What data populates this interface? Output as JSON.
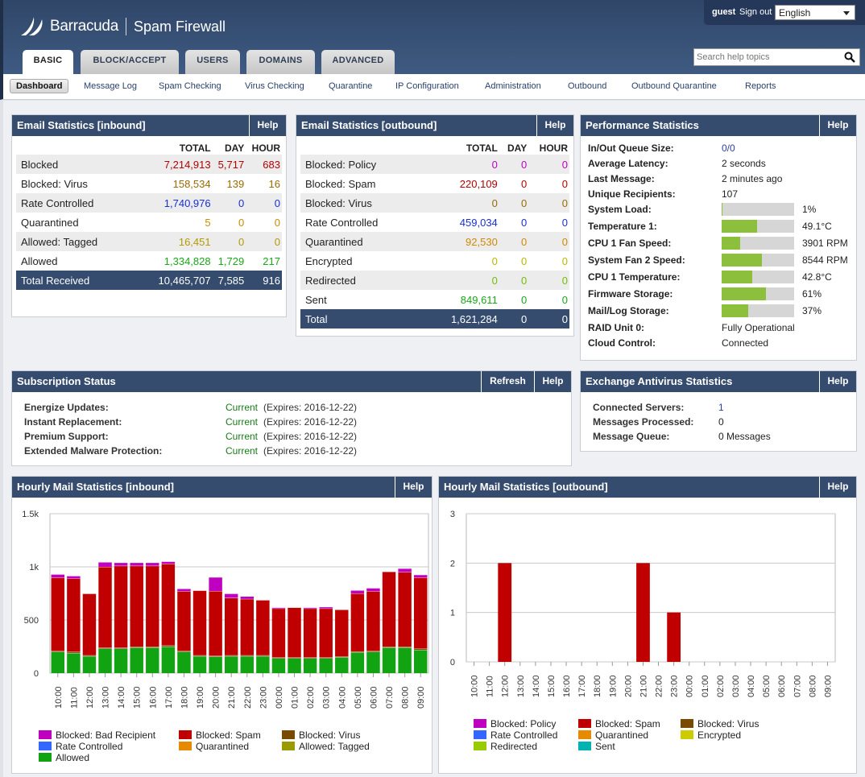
{
  "header": {
    "brand": "Barracuda",
    "product": "Spam Firewall",
    "user": "guest",
    "signout": "Sign out",
    "language": "English",
    "search_placeholder": "Search help topics"
  },
  "tabs": [
    "BASIC",
    "BLOCK/ACCEPT",
    "USERS",
    "DOMAINS",
    "ADVANCED"
  ],
  "subnav": [
    "Dashboard",
    "Message Log",
    "Spam Checking",
    "Virus Checking",
    "Quarantine",
    "IP Configuration",
    "Administration",
    "Outbound",
    "Outbound Quarantine",
    "Reports"
  ],
  "inbound": {
    "title": "Email Statistics [inbound]",
    "help": "Help",
    "cols": [
      "TOTAL",
      "DAY",
      "HOUR"
    ],
    "rows": [
      {
        "label": "Blocked",
        "total": "7,214,913",
        "day": "5,717",
        "hour": "683",
        "c": "cR"
      },
      {
        "label": "Blocked: Virus",
        "total": "158,534",
        "day": "139",
        "hour": "16",
        "c": "cV"
      },
      {
        "label": "Rate Controlled",
        "total": "1,740,976",
        "day": "0",
        "hour": "0",
        "c": "cB"
      },
      {
        "label": "Quarantined",
        "total": "5",
        "day": "0",
        "hour": "0",
        "c": "cQ"
      },
      {
        "label": "Allowed: Tagged",
        "total": "16,451",
        "day": "0",
        "hour": "0",
        "c": "cT"
      },
      {
        "label": "Allowed",
        "total": "1,334,828",
        "day": "1,729",
        "hour": "217",
        "c": "cA"
      }
    ],
    "total": {
      "label": "Total Received",
      "total": "10,465,707",
      "day": "7,585",
      "hour": "916"
    }
  },
  "outbound": {
    "title": "Email Statistics [outbound]",
    "help": "Help",
    "cols": [
      "TOTAL",
      "DAY",
      "HOUR"
    ],
    "rows": [
      {
        "label": "Blocked: Policy",
        "total": "0",
        "day": "0",
        "hour": "0",
        "c": "cP"
      },
      {
        "label": "Blocked: Spam",
        "total": "220,109",
        "day": "0",
        "hour": "0",
        "c": "cR"
      },
      {
        "label": "Blocked: Virus",
        "total": "0",
        "day": "0",
        "hour": "0",
        "c": "cV"
      },
      {
        "label": "Rate Controlled",
        "total": "459,034",
        "day": "0",
        "hour": "0",
        "c": "cB"
      },
      {
        "label": "Quarantined",
        "total": "92,530",
        "day": "0",
        "hour": "0",
        "c": "cQ"
      },
      {
        "label": "Encrypted",
        "total": "0",
        "day": "0",
        "hour": "0",
        "c": "cE"
      },
      {
        "label": "Redirected",
        "total": "0",
        "day": "0",
        "hour": "0",
        "c": "cD"
      },
      {
        "label": "Sent",
        "total": "849,611",
        "day": "0",
        "hour": "0",
        "c": "cA"
      }
    ],
    "total": {
      "label": "Total",
      "total": "1,621,284",
      "day": "0",
      "hour": "0"
    }
  },
  "performance": {
    "title": "Performance Statistics",
    "help": "Help",
    "items": [
      {
        "label": "In/Out Queue Size:",
        "value": "0/0",
        "link": true
      },
      {
        "label": "Average Latency:",
        "value": "2 seconds"
      },
      {
        "label": "Last Message:",
        "value": "2 minutes ago"
      },
      {
        "label": "Unique Recipients:",
        "value": "107"
      },
      {
        "label": "System Load:",
        "value": "1%",
        "bar": 1
      },
      {
        "label": "Temperature 1:",
        "value": "49.1°C",
        "bar": 49
      },
      {
        "label": "CPU 1 Fan Speed:",
        "value": "3901 RPM",
        "bar": 26
      },
      {
        "label": "System Fan 2 Speed:",
        "value": "8544 RPM",
        "bar": 56
      },
      {
        "label": "CPU 1 Temperature:",
        "value": "42.8°C",
        "bar": 42
      },
      {
        "label": "Firmware Storage:",
        "value": "61%",
        "bar": 61
      },
      {
        "label": "Mail/Log Storage:",
        "value": "37%",
        "bar": 37
      },
      {
        "label": "RAID Unit 0:",
        "value": "Fully Operational"
      },
      {
        "label": "Cloud Control:",
        "value": "Connected"
      }
    ]
  },
  "subscription": {
    "title": "Subscription Status",
    "refresh": "Refresh",
    "help": "Help",
    "items": [
      {
        "label": "Energize Updates:",
        "status": "Current",
        "expires": "(Expires: 2016-12-22)"
      },
      {
        "label": "Instant Replacement:",
        "status": "Current",
        "expires": "(Expires: 2016-12-22)"
      },
      {
        "label": "Premium Support:",
        "status": "Current",
        "expires": "(Expires: 2016-12-22)"
      },
      {
        "label": "Extended Malware Protection:",
        "status": "Current",
        "expires": "(Expires: 2016-12-22)"
      }
    ]
  },
  "exchange": {
    "title": "Exchange Antivirus Statistics",
    "help": "Help",
    "items": [
      {
        "label": "Connected Servers:",
        "value": "1",
        "link": true
      },
      {
        "label": "Messages Processed:",
        "value": "0"
      },
      {
        "label": "Message Queue:",
        "value": "0 Messages"
      }
    ]
  },
  "hourly_in": {
    "title": "Hourly Mail Statistics [inbound]",
    "help": "Help"
  },
  "hourly_out": {
    "title": "Hourly Mail Statistics [outbound]",
    "help": "Help"
  },
  "chart_data": [
    {
      "type": "bar",
      "stacked": true,
      "title": "Hourly Mail Statistics [inbound]",
      "categories": [
        "10:00",
        "11:00",
        "12:00",
        "13:00",
        "14:00",
        "15:00",
        "16:00",
        "17:00",
        "18:00",
        "19:00",
        "20:00",
        "21:00",
        "22:00",
        "23:00",
        "00:00",
        "01:00",
        "02:00",
        "03:00",
        "04:00",
        "05:00",
        "06:00",
        "07:00",
        "08:00",
        "09:00"
      ],
      "ylim": [
        0,
        1500
      ],
      "yticks": [
        "0",
        "500",
        "1k",
        "1.5k"
      ],
      "ytick_values": [
        0,
        500,
        1000,
        1500
      ],
      "series": [
        {
          "name": "Allowed",
          "color": "#12a312",
          "values": [
            200,
            190,
            160,
            230,
            230,
            240,
            240,
            250,
            200,
            160,
            155,
            160,
            160,
            160,
            140,
            140,
            140,
            140,
            150,
            195,
            200,
            240,
            240,
            220
          ]
        },
        {
          "name": "Allowed: Tagged",
          "color": "#999900",
          "values": [
            0,
            0,
            0,
            0,
            0,
            0,
            0,
            0,
            0,
            0,
            0,
            0,
            0,
            0,
            0,
            0,
            0,
            0,
            0,
            0,
            0,
            0,
            0,
            0
          ]
        },
        {
          "name": "Quarantined",
          "color": "#e68a00",
          "values": [
            0,
            0,
            0,
            0,
            0,
            0,
            0,
            0,
            0,
            0,
            0,
            0,
            0,
            0,
            0,
            0,
            0,
            0,
            0,
            0,
            0,
            0,
            0,
            0
          ]
        },
        {
          "name": "Rate Controlled",
          "color": "#3366ff",
          "values": [
            0,
            0,
            0,
            0,
            0,
            0,
            0,
            0,
            0,
            0,
            0,
            0,
            0,
            0,
            0,
            0,
            0,
            0,
            0,
            0,
            0,
            0,
            0,
            0
          ]
        },
        {
          "name": "Blocked: Virus",
          "color": "#7a4a00",
          "values": [
            10,
            10,
            8,
            10,
            10,
            10,
            10,
            10,
            10,
            8,
            8,
            8,
            8,
            8,
            8,
            8,
            8,
            8,
            8,
            10,
            10,
            10,
            10,
            10
          ]
        },
        {
          "name": "Blocked: Spam",
          "color": "#c00000",
          "values": [
            690,
            690,
            580,
            760,
            770,
            760,
            760,
            770,
            560,
            610,
            610,
            540,
            530,
            520,
            460,
            470,
            460,
            460,
            440,
            545,
            560,
            705,
            700,
            670
          ]
        },
        {
          "name": "Blocked: Bad Recipient",
          "color": "#c000c0",
          "values": [
            30,
            25,
            0,
            45,
            30,
            30,
            30,
            20,
            25,
            0,
            130,
            40,
            25,
            0,
            10,
            0,
            10,
            15,
            0,
            30,
            30,
            0,
            35,
            25
          ]
        }
      ],
      "legend": [
        "Blocked: Bad Recipient",
        "Blocked: Spam",
        "Blocked: Virus",
        "Rate Controlled",
        "Quarantined",
        "Allowed: Tagged",
        "Allowed"
      ]
    },
    {
      "type": "bar",
      "stacked": true,
      "title": "Hourly Mail Statistics [outbound]",
      "categories": [
        "10:00",
        "11:00",
        "12:00",
        "13:00",
        "14:00",
        "15:00",
        "16:00",
        "17:00",
        "18:00",
        "19:00",
        "20:00",
        "21:00",
        "22:00",
        "23:00",
        "00:00",
        "01:00",
        "02:00",
        "03:00",
        "04:00",
        "05:00",
        "06:00",
        "07:00",
        "08:00",
        "09:00"
      ],
      "ylim": [
        0,
        3
      ],
      "yticks": [
        "0",
        "1",
        "2",
        "3"
      ],
      "ytick_values": [
        0,
        1,
        2,
        3
      ],
      "series": [
        {
          "name": "Blocked: Spam",
          "color": "#c00000",
          "values": [
            0,
            0,
            2,
            0,
            0,
            0,
            0,
            0,
            0,
            0,
            0,
            2,
            0,
            1,
            0,
            0,
            0,
            0,
            0,
            0,
            0,
            0,
            0,
            0
          ]
        }
      ],
      "legend": [
        "Blocked: Policy",
        "Blocked: Spam",
        "Blocked: Virus",
        "Rate Controlled",
        "Quarantined",
        "Encrypted",
        "Redirected",
        "Sent"
      ],
      "legend_colors": [
        "#c000c0",
        "#c00000",
        "#7a4a00",
        "#3366ff",
        "#e68a00",
        "#cccc00",
        "#99cc00",
        "#00b3b3"
      ]
    }
  ],
  "colors": {
    "header": "#354c6f",
    "accent": "#2b3f6b",
    "bar_fill": "#8cbf3c"
  }
}
